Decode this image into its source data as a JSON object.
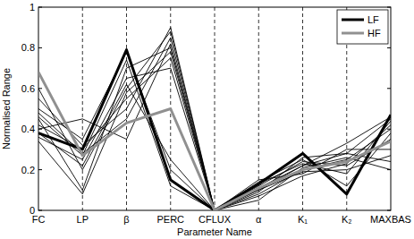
{
  "chart_data": {
    "type": "line",
    "x_label": "Parameter Name",
    "y_label": "Normalised Range",
    "categories": [
      "FC",
      "LP",
      "β",
      "PERC",
      "CFLUX",
      "α",
      "K₁",
      "K₂",
      "MAXBAS"
    ],
    "ylim": [
      0,
      1
    ],
    "yticks": [
      0,
      0.2,
      0.4,
      0.6,
      0.8,
      1
    ],
    "grid": true,
    "legend": "upper right",
    "series": [
      {
        "color": "#000000",
        "values": [
          0.6,
          0.2,
          0.6,
          0.88,
          0,
          0.1,
          0.22,
          0.28,
          0.45
        ]
      },
      {
        "color": "#000000",
        "values": [
          0.55,
          0.32,
          0.5,
          0.9,
          0,
          0.08,
          0.2,
          0.25,
          0.4
        ]
      },
      {
        "color": "#000000",
        "values": [
          0.48,
          0.28,
          0.45,
          0.85,
          0,
          0.12,
          0.24,
          0.22,
          0.35
        ]
      },
      {
        "color": "#000000",
        "values": [
          0.45,
          0.1,
          0.7,
          0.8,
          0,
          0.15,
          0.18,
          0.3,
          0.3
        ]
      },
      {
        "color": "#000000",
        "values": [
          0.42,
          0.3,
          0.55,
          0.75,
          0,
          0.05,
          0.21,
          0.26,
          0.2
        ]
      },
      {
        "color": "#000000",
        "values": [
          0.4,
          0.45,
          0.35,
          0.82,
          0,
          0.14,
          0.25,
          0.12,
          0.38
        ]
      },
      {
        "color": "#000000",
        "values": [
          0.36,
          0.25,
          0.65,
          0.7,
          0,
          0.1,
          0.19,
          0.2,
          0.27
        ]
      },
      {
        "color": "#000000",
        "values": [
          0.5,
          0.35,
          0.78,
          0.2,
          0,
          0.13,
          0.23,
          0.18,
          0.44
        ]
      },
      {
        "color": "#000000",
        "values": [
          0.38,
          0.22,
          0.62,
          0.25,
          0,
          0.09,
          0.26,
          0.28,
          0.24
        ]
      },
      {
        "color": "#000000",
        "values": [
          0.34,
          0.08,
          0.58,
          0.78,
          0,
          0.07,
          0.17,
          0.23,
          0.42
        ]
      },
      {
        "color": "#000000",
        "values": [
          0.46,
          0.27,
          0.74,
          0.12,
          0,
          0.11,
          0.22,
          0.33,
          0.46
        ]
      },
      {
        "name": "LF",
        "color": "#000000",
        "values": [
          0.38,
          0.3,
          0.79,
          0.15,
          0,
          0.13,
          0.28,
          0.08,
          0.47
        ]
      },
      {
        "name": "HF",
        "color": "#909090",
        "values": [
          0.68,
          0.27,
          0.43,
          0.5,
          0,
          0.11,
          0.2,
          0.24,
          0.34
        ]
      }
    ]
  }
}
